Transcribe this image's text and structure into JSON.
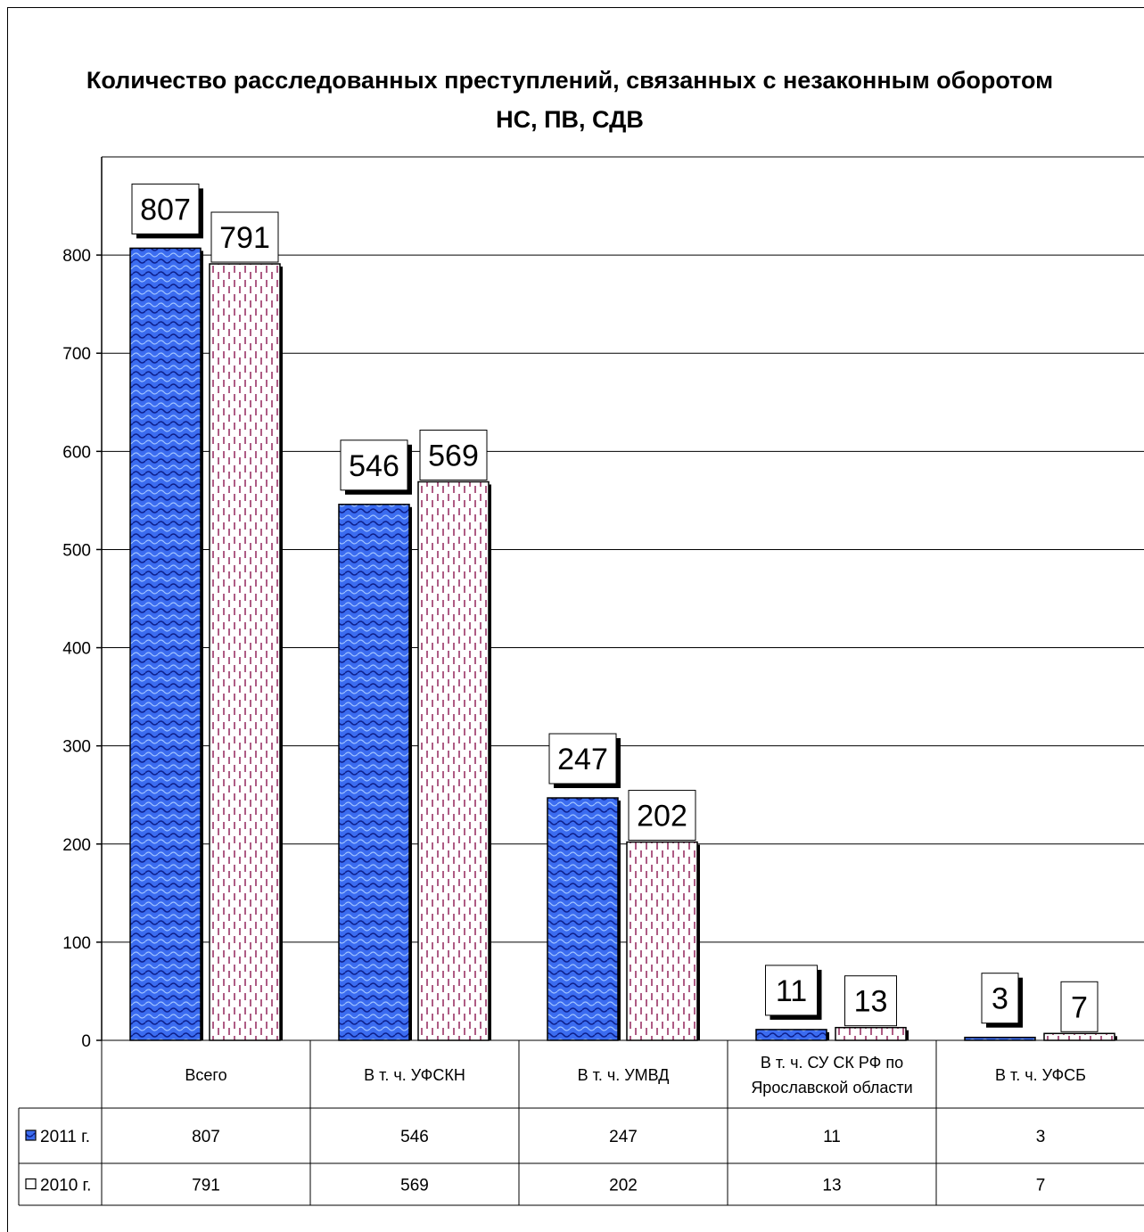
{
  "chart_data": {
    "type": "bar",
    "title_lines": [
      "Количество расследованных преступлений, связанных с незаконным оборотом",
      "НС, ПВ, СДВ"
    ],
    "categories": [
      "Всего",
      "В т. ч. УФСКН",
      "В т. ч. УМВД",
      "В т. ч. СУ СК РФ по Ярославской области",
      "В т. ч. УФСБ"
    ],
    "category_lines": [
      [
        "Всего"
      ],
      [
        "В т. ч. УФСКН"
      ],
      [
        "В т. ч. УМВД"
      ],
      [
        "В т. ч. СУ СК РФ по",
        "Ярославской области"
      ],
      [
        "В т. ч. УФСБ"
      ]
    ],
    "series": [
      {
        "name": "2011 г.",
        "values": [
          807,
          546,
          247,
          11,
          3
        ],
        "color": "#3366ff"
      },
      {
        "name": "2010 г.",
        "values": [
          791,
          569,
          202,
          13,
          7
        ],
        "color": "#993366"
      }
    ],
    "ylim": [
      0,
      800
    ],
    "yticks": [
      0,
      100,
      200,
      300,
      400,
      500,
      600,
      700,
      800
    ],
    "grid": true,
    "data_table": true,
    "data_labels": true
  }
}
